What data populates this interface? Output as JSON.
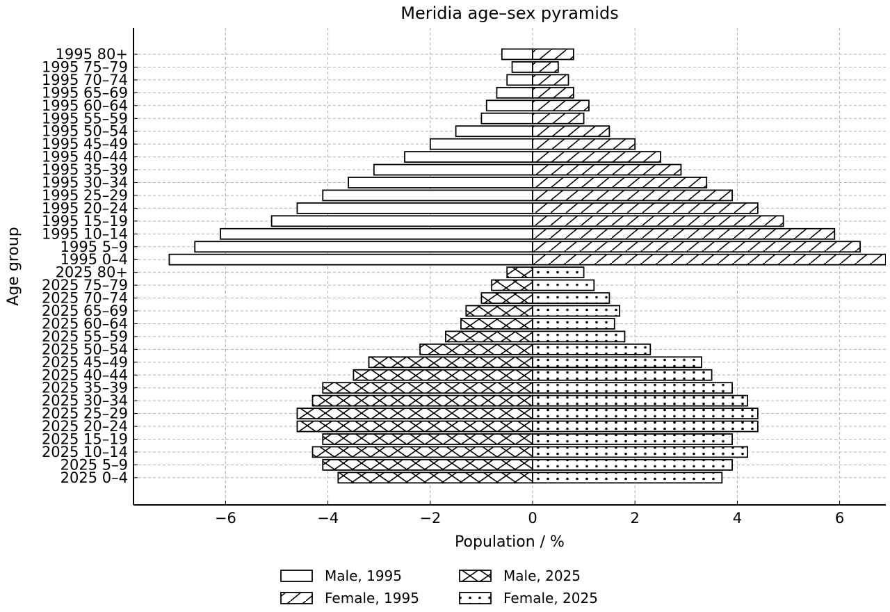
{
  "chart_data": {
    "type": "bar",
    "orientation": "horizontal",
    "title": "Meridia age–sex pyramids",
    "xlabel": "Population / %",
    "ylabel": "Age group",
    "xlim": [
      -7.8,
      6.9
    ],
    "xticks": [
      -6,
      -4,
      -2,
      0,
      2,
      4,
      6
    ],
    "xtick_labels": [
      "−6",
      "−4",
      "−2",
      "0",
      "2",
      "4",
      "6"
    ],
    "grid": true,
    "legend_position": "bottom-center",
    "categories": [
      "1995 80+",
      "1995 75–79",
      "1995 70–74",
      "1995 65–69",
      "1995 60–64",
      "1995 55–59",
      "1995 50–54",
      "1995 45–49",
      "1995 40–44",
      "1995 35–39",
      "1995 30–34",
      "1995 25–29",
      "1995 20–24",
      "1995 15–19",
      "1995 10–14",
      "1995 5–9",
      "1995 0–4",
      "2025 80+",
      "2025 75–79",
      "2025 70–74",
      "2025 65–69",
      "2025 60–64",
      "2025 55–59",
      "2025 50–54",
      "2025 45–49",
      "2025 40–44",
      "2025 35–39",
      "2025 30–34",
      "2025 25–29",
      "2025 20–24",
      "2025 15–19",
      "2025 10–14",
      "2025 5–9",
      "2025 0–4"
    ],
    "series": [
      {
        "name": "Male, 1995",
        "pattern": "none",
        "values": [
          -0.6,
          -0.4,
          -0.5,
          -0.7,
          -0.9,
          -1.0,
          -1.5,
          -2.0,
          -2.5,
          -3.1,
          -3.6,
          -4.1,
          -4.6,
          -5.1,
          -6.1,
          -6.6,
          -7.1,
          null,
          null,
          null,
          null,
          null,
          null,
          null,
          null,
          null,
          null,
          null,
          null,
          null,
          null,
          null,
          null,
          null
        ]
      },
      {
        "name": "Female, 1995",
        "pattern": "diagonal",
        "values": [
          0.8,
          0.5,
          0.7,
          0.8,
          1.1,
          1.0,
          1.5,
          2.0,
          2.5,
          2.9,
          3.4,
          3.9,
          4.4,
          4.9,
          5.9,
          6.4,
          6.9,
          null,
          null,
          null,
          null,
          null,
          null,
          null,
          null,
          null,
          null,
          null,
          null,
          null,
          null,
          null,
          null,
          null
        ]
      },
      {
        "name": "Male, 2025",
        "pattern": "cross",
        "values": [
          null,
          null,
          null,
          null,
          null,
          null,
          null,
          null,
          null,
          null,
          null,
          null,
          null,
          null,
          null,
          null,
          null,
          -0.5,
          -0.8,
          -1.0,
          -1.3,
          -1.4,
          -1.7,
          -2.2,
          -3.2,
          -3.5,
          -4.1,
          -4.3,
          -4.6,
          -4.6,
          -4.1,
          -4.3,
          -4.1,
          -3.8
        ]
      },
      {
        "name": "Female, 2025",
        "pattern": "dots",
        "values": [
          null,
          null,
          null,
          null,
          null,
          null,
          null,
          null,
          null,
          null,
          null,
          null,
          null,
          null,
          null,
          null,
          null,
          1.0,
          1.2,
          1.5,
          1.7,
          1.6,
          1.8,
          2.3,
          3.3,
          3.5,
          3.9,
          4.2,
          4.4,
          4.4,
          3.9,
          4.2,
          3.9,
          3.7
        ]
      }
    ],
    "colors": {
      "bar_fill": "#ffffff",
      "bar_stroke": "#000000",
      "grid": "#b0b0b0",
      "axis": "#000000"
    }
  }
}
